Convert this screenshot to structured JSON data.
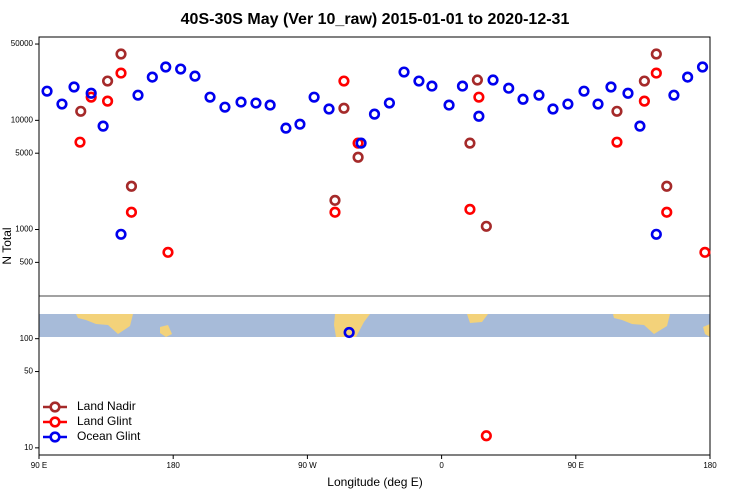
{
  "chart_data": {
    "type": "scatter",
    "title": "40S-30S May (Ver 10_raw)   2015-01-01 to 2020-12-31",
    "x_label": "Longitude (deg E)",
    "y_label": "N Total",
    "xlim": [
      90,
      540
    ],
    "ylim": [
      8.6,
      58000
    ],
    "y_log": true,
    "legend": "lower left",
    "xticks": [
      {
        "value": 90,
        "label": "90 E"
      },
      {
        "value": 180,
        "label": "180"
      },
      {
        "value": 270,
        "label": "90 W"
      },
      {
        "value": 360,
        "label": "0"
      },
      {
        "value": 450,
        "label": "90 E"
      },
      {
        "value": 540,
        "label": "180"
      }
    ],
    "yticks": [
      10,
      50,
      100,
      500,
      1000,
      5000,
      10000,
      50000
    ],
    "series": [
      {
        "name": "Land Nadir",
        "color": "#a52a2a",
        "x": [
          118,
          136,
          145,
          152,
          288.5,
          294.5,
          304,
          379,
          384,
          390,
          477.6,
          496,
          504,
          511
        ],
        "values": [
          12100,
          22900,
          40500,
          2490,
          1850,
          12900,
          4590,
          6180,
          23400,
          1070,
          12100,
          22900,
          40500,
          2490
        ]
      },
      {
        "name": "Land Glint",
        "color": "#ff0000",
        "x": [
          117.5,
          125,
          136,
          145,
          152,
          176.5,
          288.5,
          294.5,
          304,
          379,
          385,
          390,
          477.6,
          496,
          504,
          511,
          536.6
        ],
        "values": [
          6310,
          16300,
          15000,
          27100,
          1440,
          618,
          1440,
          22900,
          6180,
          1530,
          16300,
          12.9,
          6310,
          15000,
          27100,
          1440,
          618
        ]
      },
      {
        "name": "Ocean Glint",
        "color": "#0000ee",
        "x": [
          95.4,
          105.4,
          113.5,
          125,
          133,
          145,
          156.4,
          166,
          175,
          185,
          194.6,
          204.7,
          214.7,
          225.5,
          235.5,
          245,
          255.6,
          265,
          274.5,
          284.5,
          298,
          306,
          315,
          325,
          334.8,
          344.8,
          353.5,
          365,
          374,
          385,
          394.5,
          405,
          414.6,
          425.3,
          434.7,
          444.7,
          455.5,
          464.9,
          473.6,
          485,
          493,
          504,
          515.8,
          525,
          535
        ],
        "values": [
          18500,
          14100,
          20200,
          17700,
          8850,
          904,
          17000,
          24900,
          30800,
          29500,
          25400,
          16300,
          13200,
          14700,
          14400,
          13800,
          8480,
          9220,
          16300,
          12700,
          114,
          6180,
          11400,
          14400,
          27700,
          22900,
          20600,
          13800,
          20600,
          10900,
          23400,
          19700,
          15600,
          17000,
          12700,
          14100,
          18500,
          14100,
          20200,
          17700,
          8850,
          904,
          17000,
          24900,
          30800
        ]
      }
    ]
  }
}
